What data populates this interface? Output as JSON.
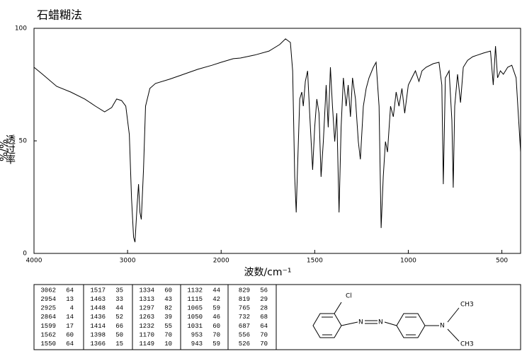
{
  "chart_data": {
    "type": "line",
    "title": "石蜡糊法",
    "xlabel": "波数/cm⁻¹",
    "ylabel": "透过率",
    "ylabel_unit": "%/%",
    "x": [
      4000,
      3909,
      3758,
      3608,
      3457,
      3343,
      3245,
      3170,
      3117,
      3064,
      3019,
      2981,
      2958,
      2936,
      2921,
      2898,
      2883,
      2868,
      2853,
      2830,
      2808,
      2762,
      2702,
      2551,
      2400,
      2249,
      2098,
      2000,
      1935,
      1897,
      1821,
      1744,
      1687,
      1656,
      1630,
      1618,
      1607,
      1599,
      1592,
      1580,
      1569,
      1561,
      1550,
      1538,
      1527,
      1511,
      1500,
      1489,
      1477,
      1466,
      1454,
      1439,
      1428,
      1416,
      1405,
      1393,
      1382,
      1370,
      1359,
      1347,
      1332,
      1321,
      1309,
      1298,
      1282,
      1267,
      1256,
      1240,
      1225,
      1210,
      1187,
      1172,
      1156,
      1145,
      1134,
      1122,
      1111,
      1095,
      1080,
      1065,
      1050,
      1034,
      1019,
      1000,
      981,
      962,
      943,
      927,
      905,
      866,
      836,
      821,
      813,
      802,
      782,
      767,
      760,
      752,
      737,
      721,
      706,
      683,
      656,
      630,
      599,
      561,
      546,
      534,
      523,
      508,
      492,
      469,
      447,
      424,
      400
    ],
    "values": [
      82.7,
      79.6,
      74.2,
      71.7,
      68.6,
      65.4,
      62.9,
      64.8,
      68.6,
      67.9,
      65.4,
      52.8,
      24.5,
      7.2,
      5.0,
      21.4,
      30.8,
      18.2,
      15.1,
      37.1,
      65.4,
      73.3,
      75.5,
      77.4,
      79.6,
      81.8,
      83.6,
      84.9,
      86.5,
      86.8,
      88.1,
      89.9,
      92.8,
      95.3,
      93.7,
      81.1,
      34.0,
      18.2,
      37.1,
      68.6,
      71.7,
      65.4,
      76.4,
      81.1,
      62.3,
      37.1,
      56.0,
      68.6,
      62.3,
      34.0,
      49.7,
      74.8,
      56.0,
      82.7,
      65.4,
      49.7,
      62.3,
      18.2,
      56.0,
      78.0,
      65.4,
      74.8,
      60.7,
      78.0,
      68.6,
      49.7,
      41.8,
      65.4,
      73.3,
      78.0,
      82.7,
      84.9,
      65.4,
      11.3,
      34.0,
      49.7,
      45.0,
      65.4,
      60.7,
      71.7,
      65.4,
      73.3,
      62.3,
      74.8,
      78.0,
      81.1,
      76.4,
      81.1,
      82.7,
      84.3,
      84.9,
      74.8,
      30.8,
      78.0,
      81.1,
      59.1,
      29.2,
      65.4,
      79.6,
      67.0,
      82.7,
      85.8,
      87.4,
      88.1,
      89.0,
      89.9,
      74.8,
      92.1,
      78.0,
      81.1,
      79.6,
      82.7,
      83.6,
      78.0,
      45.0
    ],
    "color": "#000000",
    "xlim": [
      4000,
      400
    ],
    "xscale_break": 2000,
    "xticks": [
      4000,
      3000,
      2000,
      1500,
      1000,
      500
    ],
    "ylim": [
      0,
      100
    ],
    "yticks": [
      0,
      50,
      100
    ],
    "grid": false
  },
  "peak_table": {
    "columns": [
      [
        [
          3062,
          64
        ],
        [
          2954,
          13
        ],
        [
          2925,
          4
        ],
        [
          2864,
          14
        ],
        [
          1599,
          17
        ],
        [
          1562,
          60
        ],
        [
          1550,
          64
        ]
      ],
      [
        [
          1517,
          35
        ],
        [
          1463,
          33
        ],
        [
          1448,
          44
        ],
        [
          1436,
          52
        ],
        [
          1414,
          66
        ],
        [
          1398,
          50
        ],
        [
          1366,
          15
        ]
      ],
      [
        [
          1334,
          60
        ],
        [
          1313,
          43
        ],
        [
          1297,
          82
        ],
        [
          1263,
          39
        ],
        [
          1232,
          55
        ],
        [
          1170,
          70
        ],
        [
          1149,
          10
        ]
      ],
      [
        [
          1132,
          44
        ],
        [
          1115,
          42
        ],
        [
          1065,
          59
        ],
        [
          1050,
          46
        ],
        [
          1031,
          60
        ],
        [
          953,
          70
        ],
        [
          943,
          59
        ]
      ],
      [
        [
          829,
          56
        ],
        [
          819,
          29
        ],
        [
          765,
          28
        ],
        [
          732,
          68
        ],
        [
          687,
          64
        ],
        [
          556,
          70
        ],
        [
          526,
          70
        ]
      ]
    ]
  },
  "structure": {
    "labels": [
      "Cl",
      "N",
      "N",
      "N",
      "CH3",
      "CH3"
    ]
  }
}
